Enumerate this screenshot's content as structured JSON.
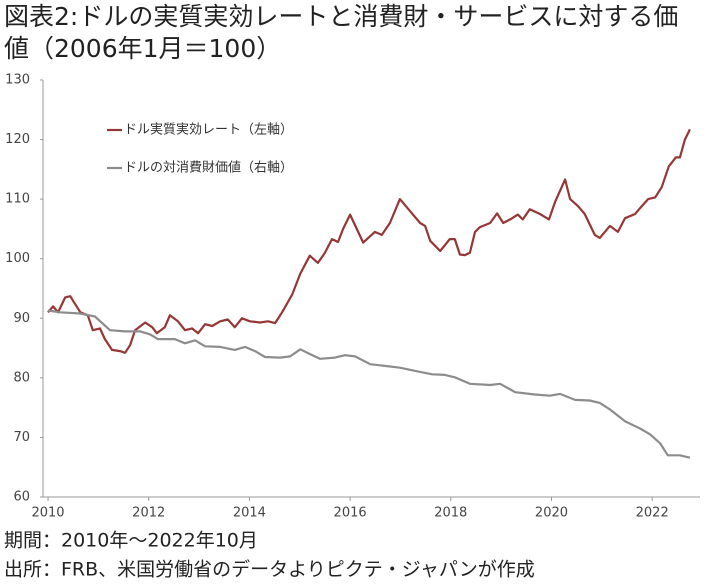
{
  "chart_data": {
    "type": "line",
    "title": [
      "図表2:ドルの実質実効レートと消費財・サービスに対する価",
      "値（2006年1月＝100）"
    ],
    "notes": [
      "期間：2010年～2022年10月",
      "出所：FRB、米国労働省のデータよりピクテ・ジャパンが作成"
    ],
    "xlim": [
      2009.9,
      2022.95
    ],
    "xticks": [
      2010,
      2012,
      2014,
      2016,
      2018,
      2020,
      2022
    ],
    "ylim": [
      60,
      130
    ],
    "yticks": [
      60,
      70,
      80,
      90,
      100,
      110,
      120,
      130
    ],
    "legend": "upper-left",
    "series": [
      {
        "name": "ドル実質実効レート（左軸）",
        "color": "#953735",
        "x": [
          2010.0,
          2010.1,
          2010.2,
          2010.34,
          2010.44,
          2010.64,
          2010.79,
          2010.89,
          2011.03,
          2011.13,
          2011.27,
          2011.43,
          2011.53,
          2011.63,
          2011.73,
          2011.93,
          2012.07,
          2012.16,
          2012.32,
          2012.42,
          2012.58,
          2012.72,
          2012.86,
          2012.98,
          2013.12,
          2013.26,
          2013.42,
          2013.57,
          2013.71,
          2013.85,
          2014.01,
          2014.21,
          2014.37,
          2014.51,
          2014.65,
          2014.85,
          2015.01,
          2015.2,
          2015.36,
          2015.5,
          2015.64,
          2015.76,
          2015.86,
          2016.0,
          2016.26,
          2016.49,
          2016.63,
          2016.79,
          2016.99,
          2017.19,
          2017.39,
          2017.49,
          2017.59,
          2017.79,
          2017.98,
          2018.08,
          2018.18,
          2018.28,
          2018.38,
          2018.48,
          2018.58,
          2018.78,
          2018.92,
          2019.04,
          2019.18,
          2019.33,
          2019.43,
          2019.57,
          2019.77,
          2019.95,
          2020.07,
          2020.27,
          2020.37,
          2020.53,
          2020.66,
          2020.86,
          2020.96,
          2021.16,
          2021.32,
          2021.46,
          2021.66,
          2021.76,
          2021.92,
          2022.06,
          2022.19,
          2022.33,
          2022.47,
          2022.55,
          2022.65,
          2022.75
        ],
        "values": [
          91,
          92,
          91,
          93.5,
          93.7,
          91,
          90.5,
          88,
          88.3,
          86.5,
          84.7,
          84.5,
          84.2,
          85.5,
          88,
          89.3,
          88.5,
          87.5,
          88.5,
          90.5,
          89.5,
          88,
          88.3,
          87.5,
          89,
          88.7,
          89.5,
          89.8,
          88.5,
          90,
          89.5,
          89.3,
          89.5,
          89.2,
          91,
          94,
          97.5,
          100.5,
          99.3,
          101,
          103.3,
          102.8,
          105,
          107.4,
          102.7,
          104.5,
          104,
          106,
          110,
          108,
          106,
          105.5,
          103,
          101.3,
          103.3,
          103.3,
          100.7,
          100.6,
          101,
          104.5,
          105.3,
          106,
          107.6,
          106,
          106.6,
          107.4,
          106.6,
          108.3,
          107.5,
          106.6,
          109.5,
          113.3,
          110,
          108.8,
          107.5,
          104,
          103.5,
          105.5,
          104.5,
          106.8,
          107.5,
          108.5,
          110,
          110.3,
          112,
          115.5,
          117,
          117,
          120,
          121.7
        ]
      },
      {
        "name": "ドルの対消費財価値（右軸）",
        "color": "#8c8c8c",
        "x": [
          2010.0,
          2010.24,
          2010.64,
          2010.93,
          2011.23,
          2011.53,
          2011.83,
          2012.03,
          2012.18,
          2012.52,
          2012.72,
          2012.92,
          2013.12,
          2013.42,
          2013.71,
          2013.91,
          2014.11,
          2014.31,
          2014.61,
          2014.81,
          2015.01,
          2015.2,
          2015.4,
          2015.7,
          2015.9,
          2016.1,
          2016.4,
          2016.69,
          2016.99,
          2017.39,
          2017.63,
          2017.88,
          2018.08,
          2018.38,
          2018.78,
          2018.98,
          2019.28,
          2019.67,
          2019.97,
          2020.17,
          2020.47,
          2020.76,
          2020.96,
          2021.16,
          2021.46,
          2021.76,
          2021.96,
          2022.16,
          2022.31,
          2022.55,
          2022.75
        ],
        "values": [
          91.3,
          91,
          90.8,
          90.3,
          88,
          87.8,
          87.8,
          87.3,
          86.5,
          86.5,
          85.8,
          86.3,
          85.3,
          85.2,
          84.7,
          85.2,
          84.5,
          83.5,
          83.4,
          83.6,
          84.8,
          84,
          83.2,
          83.4,
          83.8,
          83.6,
          82.3,
          82,
          81.7,
          81,
          80.6,
          80.5,
          80.1,
          79,
          78.8,
          79,
          77.6,
          77.2,
          77,
          77.3,
          76.3,
          76.2,
          75.8,
          74.7,
          72.7,
          71.5,
          70.5,
          69,
          67,
          67,
          66.6
        ]
      }
    ]
  }
}
